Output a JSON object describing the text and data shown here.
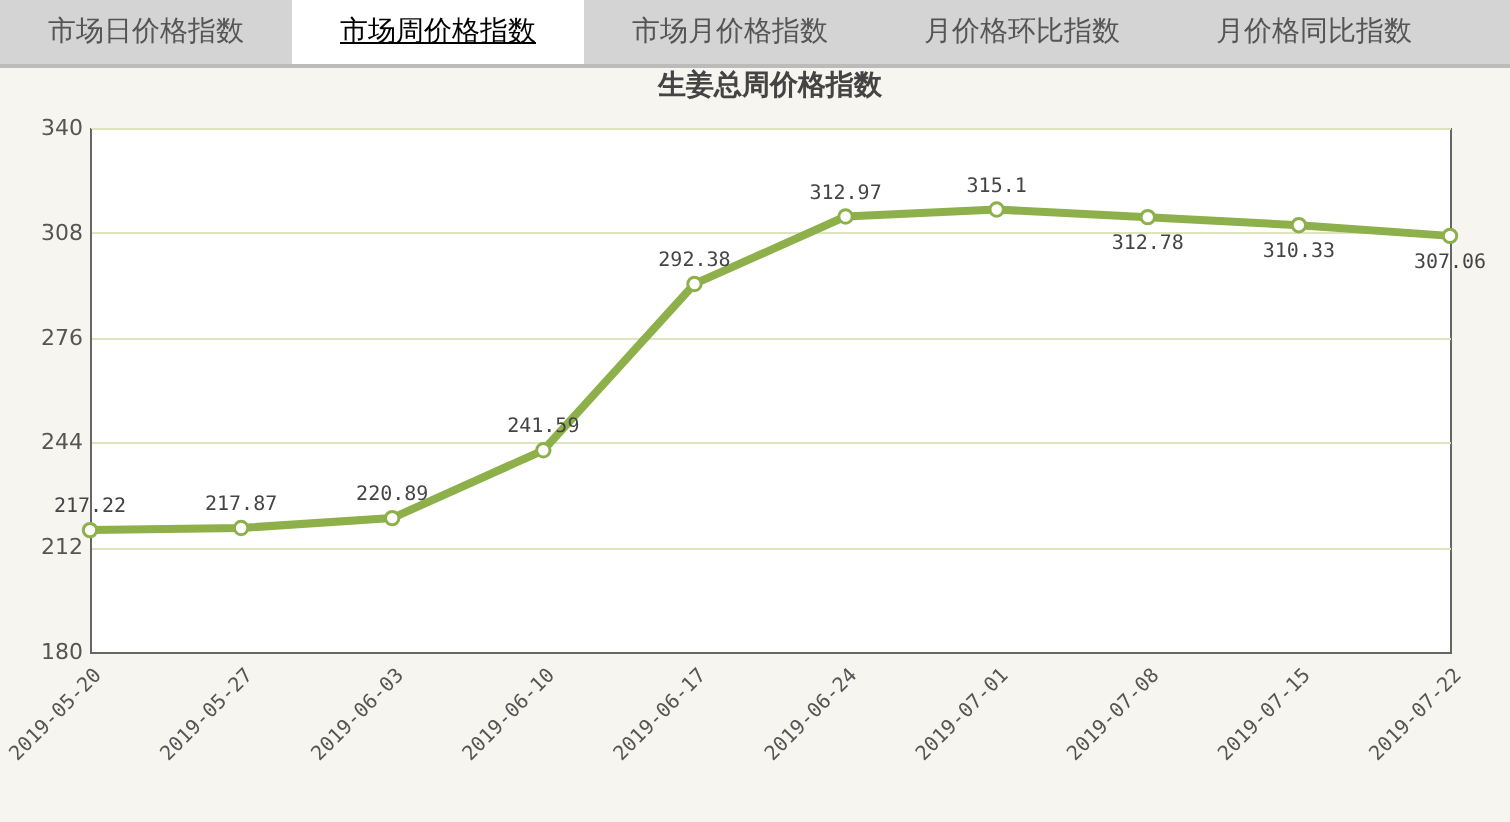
{
  "chart_data": {
    "type": "line",
    "title": "生姜总周价格指数",
    "annotations": [
      "市场日价格指数",
      "市场周价格指数",
      "市场月价格指数",
      "月价格环比指数",
      "月价格同比指数"
    ],
    "categories": [
      "2019-05-20",
      "2019-05-27",
      "2019-06-03",
      "2019-06-10",
      "2019-06-17",
      "2019-06-24",
      "2019-07-01",
      "2019-07-08",
      "2019-07-15",
      "2019-07-22"
    ],
    "series": [
      {
        "color": "#8db04a",
        "values": [
          217.22,
          217.87,
          220.89,
          241.59,
          292.38,
          312.97,
          315.1,
          312.78,
          310.33,
          307.06
        ]
      }
    ],
    "ylim": [
      180,
      340
    ],
    "yticks": [
      180,
      212,
      244,
      276,
      308,
      340
    ],
    "grid": "y",
    "marker": "circle",
    "data_labels": true
  }
}
